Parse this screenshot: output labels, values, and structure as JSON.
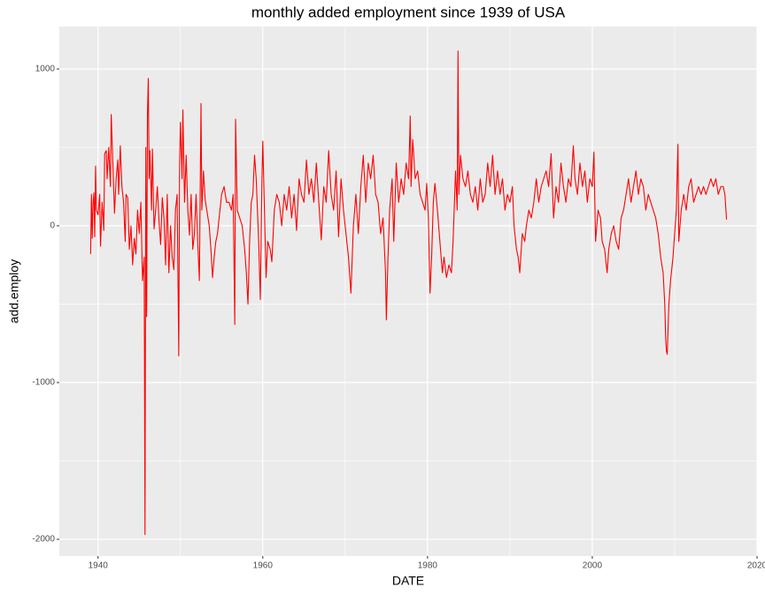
{
  "chart_data": {
    "type": "line",
    "title": "monthly added employment since 1939 of USA",
    "x_label": "DATE",
    "y_label": "add.employ",
    "color": "#ff0000",
    "grid": true,
    "xlim": [
      1935.3,
      2020
    ],
    "ylim": [
      -2107,
      1271
    ],
    "xticks": [
      1940,
      1960,
      1980,
      2000,
      2020
    ],
    "yticks": [
      -2000,
      -1000,
      0,
      1000
    ],
    "x_minor_ticks": [
      1950,
      1970,
      1990,
      2010
    ],
    "y_minor_ticks": [
      -1500,
      -500,
      500
    ],
    "x": [
      1939.1,
      1939.2,
      1939.3,
      1939.4,
      1939.5,
      1939.6,
      1939.7,
      1939.8,
      1940.0,
      1940.2,
      1940.3,
      1940.5,
      1940.7,
      1940.8,
      1941.0,
      1941.1,
      1941.3,
      1941.5,
      1941.6,
      1941.8,
      1942.0,
      1942.2,
      1942.4,
      1942.5,
      1942.7,
      1942.9,
      1943.1,
      1943.3,
      1943.4,
      1943.6,
      1943.8,
      1944.0,
      1944.2,
      1944.4,
      1944.6,
      1944.8,
      1945.0,
      1945.2,
      1945.4,
      1945.6,
      1945.7,
      1945.8,
      1945.9,
      1946.0,
      1946.1,
      1946.2,
      1946.3,
      1946.5,
      1946.6,
      1946.8,
      1947.0,
      1947.2,
      1947.4,
      1947.6,
      1947.8,
      1948.0,
      1948.2,
      1948.4,
      1948.6,
      1948.8,
      1949.0,
      1949.2,
      1949.4,
      1949.6,
      1949.8,
      1949.9,
      1950.0,
      1950.2,
      1950.3,
      1950.5,
      1950.7,
      1950.9,
      1951.1,
      1951.3,
      1951.5,
      1951.7,
      1951.9,
      1952.1,
      1952.3,
      1952.5,
      1952.6,
      1952.8,
      1953.0,
      1953.2,
      1953.5,
      1953.7,
      1953.9,
      1954.1,
      1954.3,
      1954.5,
      1954.8,
      1955.0,
      1955.3,
      1955.6,
      1955.9,
      1956.2,
      1956.4,
      1956.6,
      1956.7,
      1956.9,
      1957.2,
      1957.5,
      1957.8,
      1958.0,
      1958.2,
      1958.4,
      1958.6,
      1958.8,
      1959.0,
      1959.2,
      1959.5,
      1959.7,
      1959.9,
      1960.0,
      1960.2,
      1960.4,
      1960.6,
      1960.9,
      1961.1,
      1961.4,
      1961.7,
      1962.0,
      1962.3,
      1962.6,
      1962.9,
      1963.2,
      1963.5,
      1963.8,
      1964.1,
      1964.4,
      1964.7,
      1965.0,
      1965.3,
      1965.6,
      1965.9,
      1966.2,
      1966.5,
      1966.8,
      1967.1,
      1967.4,
      1967.7,
      1968.0,
      1968.3,
      1968.6,
      1968.9,
      1969.2,
      1969.5,
      1969.8,
      1970.1,
      1970.4,
      1970.7,
      1971.0,
      1971.3,
      1971.6,
      1971.9,
      1972.2,
      1972.5,
      1972.8,
      1973.1,
      1973.4,
      1973.7,
      1974.0,
      1974.3,
      1974.6,
      1974.9,
      1975.0,
      1975.2,
      1975.4,
      1975.7,
      1975.9,
      1976.2,
      1976.5,
      1976.8,
      1977.1,
      1977.4,
      1977.7,
      1977.9,
      1978.0,
      1978.2,
      1978.5,
      1978.8,
      1979.1,
      1979.4,
      1979.7,
      1979.9,
      1980.1,
      1980.3,
      1980.5,
      1980.7,
      1980.9,
      1981.2,
      1981.5,
      1981.8,
      1982.0,
      1982.3,
      1982.6,
      1982.9,
      1983.1,
      1983.4,
      1983.6,
      1983.7,
      1983.8,
      1984.0,
      1984.3,
      1984.6,
      1984.9,
      1985.2,
      1985.5,
      1985.8,
      1986.1,
      1986.4,
      1986.7,
      1987.0,
      1987.3,
      1987.6,
      1987.9,
      1988.2,
      1988.5,
      1988.8,
      1989.1,
      1989.4,
      1989.7,
      1990.0,
      1990.3,
      1990.5,
      1990.8,
      1991.0,
      1991.2,
      1991.5,
      1991.8,
      1992.0,
      1992.3,
      1992.6,
      1992.9,
      1993.2,
      1993.5,
      1993.8,
      1994.1,
      1994.4,
      1994.7,
      1995.0,
      1995.3,
      1995.6,
      1995.9,
      1996.2,
      1996.5,
      1996.8,
      1997.1,
      1997.4,
      1997.7,
      1997.9,
      1998.2,
      1998.5,
      1998.8,
      1999.1,
      1999.4,
      1999.7,
      2000.0,
      2000.2,
      2000.4,
      2000.7,
      2001.0,
      2001.2,
      2001.5,
      2001.8,
      2002.0,
      2002.3,
      2002.6,
      2002.9,
      2003.2,
      2003.5,
      2003.8,
      2004.1,
      2004.4,
      2004.7,
      2005.0,
      2005.3,
      2005.6,
      2005.9,
      2006.2,
      2006.5,
      2006.8,
      2007.1,
      2007.4,
      2007.7,
      2008.0,
      2008.3,
      2008.6,
      2008.8,
      2008.9,
      2009.0,
      2009.1,
      2009.3,
      2009.5,
      2009.8,
      2010.0,
      2010.2,
      2010.4,
      2010.5,
      2010.8,
      2011.1,
      2011.4,
      2011.7,
      2012.0,
      2012.3,
      2012.6,
      2012.9,
      2013.2,
      2013.5,
      2013.8,
      2014.1,
      2014.4,
      2014.7,
      2015.0,
      2015.3,
      2015.6,
      2015.9,
      2016.1,
      2016.3
    ],
    "values": [
      -180,
      200,
      -80,
      150,
      210,
      -70,
      380,
      100,
      70,
      200,
      -130,
      150,
      -30,
      460,
      480,
      300,
      500,
      250,
      710,
      400,
      80,
      300,
      420,
      200,
      510,
      250,
      150,
      -100,
      200,
      180,
      -150,
      0,
      -250,
      -80,
      -180,
      100,
      -50,
      150,
      -350,
      -200,
      -1970,
      500,
      -580,
      720,
      940,
      300,
      480,
      100,
      490,
      -20,
      100,
      250,
      30,
      -120,
      180,
      50,
      -250,
      200,
      -300,
      0,
      -200,
      -280,
      100,
      200,
      -830,
      400,
      660,
      300,
      740,
      150,
      450,
      100,
      -60,
      200,
      -150,
      -50,
      200,
      -100,
      -350,
      780,
      100,
      350,
      170,
      100,
      0,
      -150,
      -330,
      -200,
      -100,
      -50,
      100,
      200,
      250,
      150,
      150,
      100,
      200,
      -630,
      680,
      100,
      50,
      0,
      -150,
      -300,
      -500,
      -100,
      150,
      200,
      450,
      300,
      -100,
      -470,
      300,
      540,
      100,
      -330,
      -100,
      -150,
      -230,
      100,
      200,
      150,
      0,
      200,
      100,
      250,
      50,
      200,
      -30,
      300,
      200,
      150,
      420,
      200,
      300,
      150,
      400,
      150,
      -90,
      250,
      150,
      480,
      200,
      100,
      350,
      -70,
      300,
      100,
      -50,
      -200,
      -430,
      0,
      200,
      -50,
      250,
      450,
      150,
      400,
      300,
      450,
      200,
      150,
      -50,
      50,
      -300,
      -600,
      -200,
      100,
      300,
      -100,
      400,
      150,
      300,
      200,
      400,
      300,
      700,
      250,
      550,
      300,
      350,
      200,
      150,
      100,
      270,
      50,
      -430,
      -200,
      150,
      270,
      100,
      -100,
      -300,
      -200,
      -330,
      -250,
      -300,
      -100,
      350,
      100,
      1115,
      200,
      450,
      300,
      250,
      350,
      200,
      150,
      250,
      100,
      300,
      150,
      200,
      400,
      250,
      450,
      200,
      350,
      200,
      300,
      100,
      200,
      150,
      250,
      0,
      -150,
      -200,
      -300,
      -50,
      -100,
      0,
      100,
      50,
      150,
      300,
      150,
      250,
      300,
      350,
      250,
      460,
      50,
      250,
      150,
      400,
      250,
      150,
      300,
      250,
      510,
      300,
      200,
      400,
      250,
      350,
      150,
      300,
      250,
      470,
      -100,
      100,
      50,
      -100,
      -150,
      -300,
      -150,
      -50,
      0,
      -100,
      -150,
      50,
      100,
      200,
      300,
      150,
      250,
      350,
      200,
      300,
      250,
      100,
      200,
      150,
      100,
      50,
      -50,
      -200,
      -300,
      -500,
      -700,
      -800,
      -820,
      -500,
      -350,
      -200,
      -50,
      100,
      520,
      -100,
      100,
      200,
      100,
      250,
      300,
      150,
      200,
      250,
      200,
      250,
      200,
      250,
      300,
      250,
      300,
      200,
      250,
      250,
      200,
      40
    ]
  }
}
